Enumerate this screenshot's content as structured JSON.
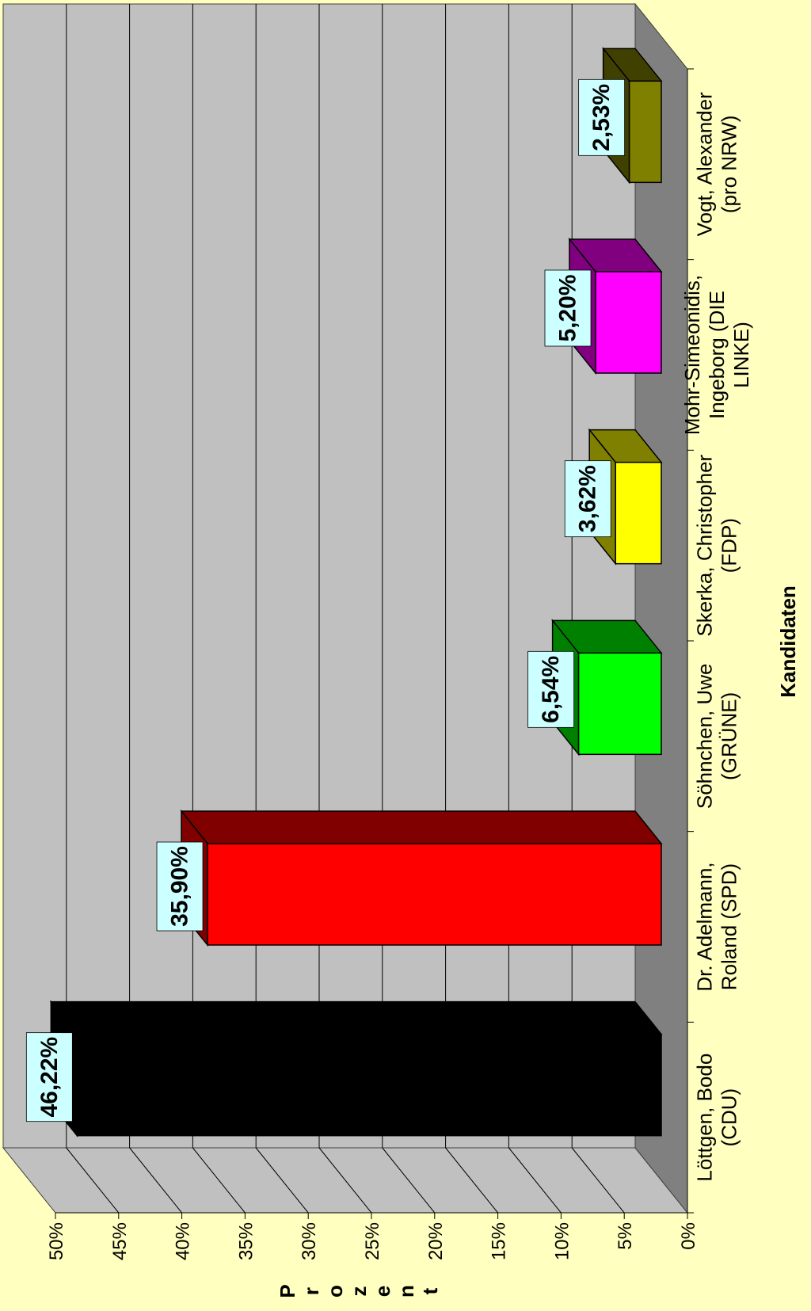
{
  "chart_data": {
    "type": "bar",
    "orientation": "rotated-90-clockwise",
    "three_d": true,
    "ylabel": "Prozent",
    "xlabel": "Kandidaten",
    "ylim": [
      0,
      50
    ],
    "y_ticks": [
      "0%",
      "5%",
      "10%",
      "15%",
      "20%",
      "25%",
      "30%",
      "35%",
      "40%",
      "45%",
      "50%"
    ],
    "grid": true,
    "categories": [
      [
        "Löttgen, Bodo",
        "(CDU)"
      ],
      [
        "Dr. Adelmann,",
        "Roland (SPD)"
      ],
      [
        "Söhnchen, Uwe",
        "(GRÜNE)"
      ],
      [
        "Skerka, Christopher",
        "(FDP)"
      ],
      [
        "Mohr-Simeonidis,",
        "Ingeborg (DIE",
        "LINKE)"
      ],
      [
        "Vogt, Alexander",
        "(pro NRW)"
      ]
    ],
    "values": [
      46.22,
      35.9,
      6.54,
      3.62,
      5.2,
      2.53
    ],
    "data_labels": [
      "46,22%",
      "35,90%",
      "6,54%",
      "3,62%",
      "5,20%",
      "2,53%"
    ],
    "colors": [
      "#000000",
      "#ff0000",
      "#00ff00",
      "#ffff00",
      "#ff00ff",
      "#808000"
    ],
    "label_box_color": "#ccffff",
    "wall_color": "#c0c0c0",
    "floor_color": "#808080",
    "background": "#ffffc0"
  }
}
